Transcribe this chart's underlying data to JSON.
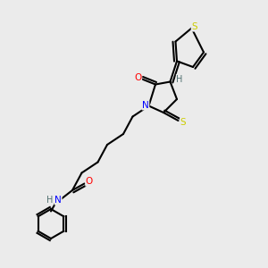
{
  "bg_color": "#ebebeb",
  "bond_color": "#000000",
  "bond_width": 1.5,
  "atom_colors": {
    "N": "#0000ff",
    "O": "#ff0000",
    "S": "#cccc00",
    "H": "#507070",
    "C": "#000000"
  },
  "font_size": 7.5
}
